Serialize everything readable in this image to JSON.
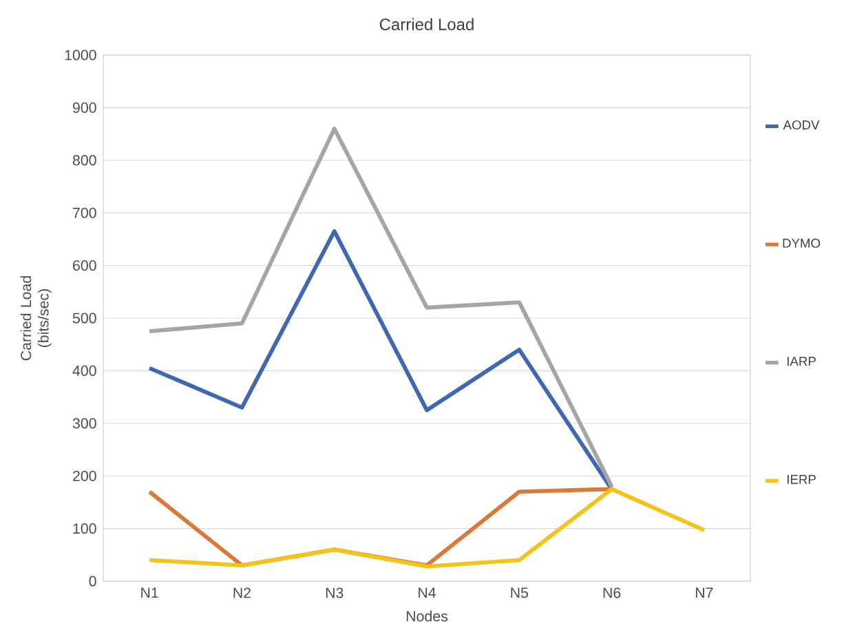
{
  "chart_data": {
    "type": "line",
    "title": "Carried Load",
    "xlabel": "Nodes",
    "ylabel": "Carried Load (bits/sec)",
    "categories": [
      "N1",
      "N2",
      "N3",
      "N4",
      "N5",
      "N6",
      "N7"
    ],
    "series": [
      {
        "name": "AODV",
        "color": "#4068b0",
        "values": [
          405,
          330,
          665,
          325,
          440,
          175,
          null
        ]
      },
      {
        "name": "DYMO",
        "color": "#d9793a",
        "values": [
          170,
          30,
          60,
          30,
          170,
          175,
          null
        ]
      },
      {
        "name": "IARP",
        "color": "#a5a5a5",
        "values": [
          475,
          490,
          860,
          520,
          530,
          180,
          null
        ]
      },
      {
        "name": "IERP",
        "color": "#f5c21a",
        "values": [
          40,
          30,
          60,
          28,
          40,
          175,
          97
        ]
      }
    ],
    "ylim": [
      0,
      1000
    ],
    "yticks": [
      0,
      100,
      200,
      300,
      400,
      500,
      600,
      700,
      800,
      900,
      1000
    ],
    "grid": "y",
    "legend": "right",
    "marker": "none",
    "line_style": "solid"
  }
}
